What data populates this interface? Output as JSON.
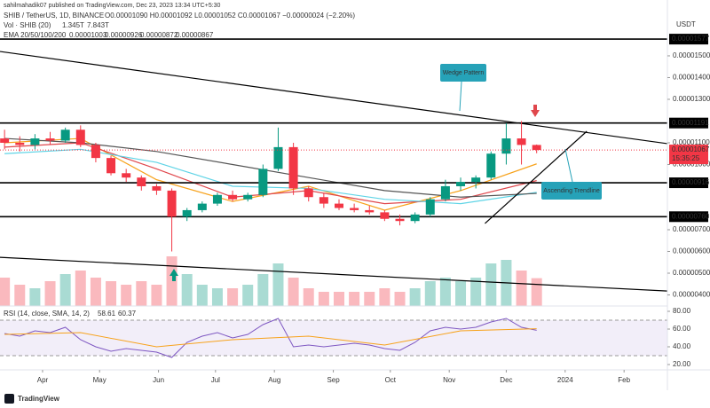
{
  "header": {
    "byline": "sahilmahadik07 published on TradingView.com, Dec 23, 2023 13:34 UTC+5:30",
    "symbol": "SHIB / TetherUS, 1D, BINANCE",
    "ohlc": "O0.00001090 H0.00001092 L0.00001052 C0.00001067 −0.00000024 (−2.20%)",
    "vol": "Vol · SHIB (20)",
    "vol_values": [
      "1.345T",
      "7.843T"
    ],
    "ema": "EMA 20/50/100/200",
    "ema_values": [
      "0.00001003",
      "0.00000926",
      "0.00000872",
      "0.00000867"
    ],
    "rsi": "RSI (14, close, SMA, 14, 2)",
    "rsi_values": [
      "58.61",
      "60.37"
    ],
    "currency": "USDT",
    "countdown": "15:35:25",
    "logo": "TradingView"
  },
  "chart_data": {
    "type": "candlestick",
    "x": [
      0,
      1,
      2,
      3,
      4,
      5,
      6,
      7,
      8,
      9,
      10,
      11,
      12,
      13,
      14,
      15,
      16,
      17,
      18,
      19,
      20,
      21,
      22,
      23,
      24,
      25,
      26,
      27,
      28,
      29,
      30,
      31,
      32,
      33,
      34,
      35
    ],
    "open": [
      1.12e-05,
      1.1e-05,
      1.09e-05,
      1.12e-05,
      1.11e-05,
      1.16e-05,
      1.09e-05,
      1.03e-05,
      9.6e-06,
      9.4e-06,
      9e-06,
      8.8e-06,
      7.6e-06,
      7.9e-06,
      8.2e-06,
      8.6e-06,
      8.4e-06,
      8.6e-06,
      9.8e-06,
      1.08e-05,
      8.9e-06,
      8.5e-06,
      8.2e-06,
      8e-06,
      7.9e-06,
      7.8e-06,
      7.5e-06,
      7.4e-06,
      7.7e-06,
      8.4e-06,
      9e-06,
      9.2e-06,
      9.4e-06,
      1.05e-05,
      1.12e-05,
      1.09e-05
    ],
    "high": [
      1.16e-05,
      1.13e-05,
      1.14e-05,
      1.15e-05,
      1.17e-05,
      1.18e-05,
      1.1e-05,
      1.04e-05,
      9.8e-06,
      9.5e-06,
      9.1e-06,
      8.9e-06,
      8e-06,
      8.3e-06,
      8.7e-06,
      8.8e-06,
      8.7e-06,
      1e-05,
      1.17e-05,
      1.1e-05,
      9e-06,
      8.7e-06,
      8.4e-06,
      8.2e-06,
      8.1e-06,
      7.9e-06,
      7.7e-06,
      7.8e-06,
      8.5e-06,
      9.3e-06,
      9.4e-06,
      9.5e-06,
      1.06e-05,
      1.19e-05,
      1.2e-05,
      1.092e-05
    ],
    "low": [
      1.07e-05,
      1.06e-05,
      1.07e-05,
      1.09e-05,
      1.1e-05,
      1.08e-05,
      1.01e-05,
      9.5e-06,
      9.2e-06,
      8.8e-06,
      8.6e-06,
      6e-06,
      7.4e-06,
      7.8e-06,
      8.1e-06,
      8.3e-06,
      8.3e-06,
      8.5e-06,
      9.7e-06,
      8.6e-06,
      8.3e-06,
      8e-06,
      7.9e-06,
      7.8e-06,
      7.7e-06,
      7.4e-06,
      7.2e-06,
      7.3e-06,
      7.6e-06,
      8.3e-06,
      8.8e-06,
      8.9e-06,
      9.3e-06,
      1e-05,
      1e-05,
      1.052e-05
    ],
    "close": [
      1.1e-05,
      1.09e-05,
      1.12e-05,
      1.11e-05,
      1.16e-05,
      1.09e-05,
      1.03e-05,
      9.6e-06,
      9.4e-06,
      9e-06,
      8.8e-06,
      7.6e-06,
      7.9e-06,
      8.2e-06,
      8.6e-06,
      8.4e-06,
      8.6e-06,
      9.8e-06,
      1.08e-05,
      8.9e-06,
      8.5e-06,
      8.2e-06,
      8e-06,
      7.9e-06,
      7.8e-06,
      7.5e-06,
      7.4e-06,
      7.7e-06,
      8.4e-06,
      9e-06,
      9.2e-06,
      9.4e-06,
      1.05e-05,
      1.12e-05,
      1.09e-05,
      1.067e-05
    ],
    "up_color": "#089981",
    "down_color": "#f23645",
    "xlim": [
      -0.3,
      43.6
    ],
    "xticks": [
      {
        "value": 2.5,
        "label": "Apr"
      },
      {
        "value": 6.25,
        "label": "May"
      },
      {
        "value": 10.125,
        "label": "Jun"
      },
      {
        "value": 13.875,
        "label": "Jul"
      },
      {
        "value": 17.75,
        "label": "Aug"
      },
      {
        "value": 21.625,
        "label": "Sep"
      },
      {
        "value": 25.375,
        "label": "Oct"
      },
      {
        "value": 29.25,
        "label": "Nov"
      },
      {
        "value": 33,
        "label": "Dec"
      },
      {
        "value": 36.875,
        "label": "2024"
      },
      {
        "value": 40.75,
        "label": "Feb"
      }
    ],
    "ylim": [
      3.49e-06,
      1.757e-05
    ],
    "yticks": [
      {
        "value": 1.5e-05,
        "label": "0.00001500"
      },
      {
        "value": 1.4e-05,
        "label": "0.00001400"
      },
      {
        "value": 1.3e-05,
        "label": "0.00001300"
      },
      {
        "value": 1.1e-05,
        "label": "0.00001100"
      },
      {
        "value": 1e-05,
        "label": "0.00001000"
      },
      {
        "value": 7e-06,
        "label": "0.00000700"
      },
      {
        "value": 6e-06,
        "label": "0.00000600"
      },
      {
        "value": 5e-06,
        "label": "0.00000500"
      },
      {
        "value": 4e-06,
        "label": "0.00000400"
      }
    ],
    "levels": [
      {
        "value": 1.577e-05,
        "label": "0.00001577"
      },
      {
        "value": 1.191e-05,
        "label": "0.00001191"
      },
      {
        "value": 9.16e-06,
        "label": "0.00000916"
      },
      {
        "value": 7.6e-06,
        "label": "0.00000760"
      }
    ],
    "last_price": {
      "value": 1.067e-05,
      "label": "0.00001067"
    },
    "ema_x": [
      0,
      5,
      10,
      15,
      20,
      25,
      30,
      35
    ],
    "ema": [
      {
        "color": "#f7a21b",
        "values": [
          1.1e-05,
          1.12e-05,
          9.3e-06,
          8.3e-06,
          9e-06,
          7.9e-06,
          8.8e-06,
          1.003e-05
        ]
      },
      {
        "color": "#e0474c",
        "values": [
          1.08e-05,
          1.1e-05,
          9.8e-06,
          8.5e-06,
          8.8e-06,
          8.2e-06,
          8.4e-06,
          9.26e-06
        ]
      },
      {
        "color": "#5fd4e6",
        "values": [
          1.05e-05,
          1.07e-05,
          1.01e-05,
          9e-06,
          8.9e-06,
          8.4e-06,
          8.2e-06,
          8.72e-06
        ]
      },
      {
        "color": "#555555",
        "values": [
          1.12e-05,
          1.1e-05,
          1.06e-05,
          1e-05,
          9.4e-06,
          8.8e-06,
          8.5e-06,
          8.67e-06
        ]
      }
    ],
    "trendlines": [
      {
        "points": [
          [
            -0.3,
            1.52e-05
          ],
          [
            43.6,
            1.096e-05
          ]
        ]
      },
      {
        "points": [
          [
            -0.3,
            5.73e-06
          ],
          [
            43.6,
            4.18e-06
          ]
        ]
      },
      {
        "points": [
          [
            31.6,
            7.29e-06
          ],
          [
            38.3,
            1.153e-05
          ]
        ]
      }
    ],
    "annotations": [
      "Wedge Pattern",
      "Ascending Trendline"
    ],
    "volume": [
      8,
      6,
      5,
      7,
      9,
      10,
      8,
      7,
      6,
      7,
      6,
      14,
      9,
      6,
      5,
      5,
      6,
      9,
      12,
      8,
      5,
      4,
      4,
      4,
      4,
      5,
      4,
      5,
      7,
      8,
      7,
      8,
      12,
      13,
      10,
      7.843
    ],
    "vol_lim": [
      0,
      25
    ],
    "rsi": [
      55,
      52,
      58,
      56,
      62,
      48,
      40,
      35,
      38,
      36,
      34,
      28,
      45,
      52,
      56,
      50,
      54,
      65,
      72,
      40,
      42,
      40,
      42,
      44,
      42,
      38,
      36,
      45,
      58,
      62,
      60,
      62,
      68,
      72,
      62,
      58.61
    ],
    "rsi_ma": [
      54,
      56,
      40,
      48,
      52,
      42,
      58,
      60.37
    ],
    "rsi_lim": [
      14,
      86
    ],
    "rsi_band": [
      30,
      70
    ],
    "rsi_ticks": [
      {
        "value": 80,
        "label": "80.00"
      },
      {
        "value": 60,
        "label": "60.00"
      },
      {
        "value": 40,
        "label": "40.00"
      },
      {
        "value": 20,
        "label": "20.00"
      }
    ]
  }
}
